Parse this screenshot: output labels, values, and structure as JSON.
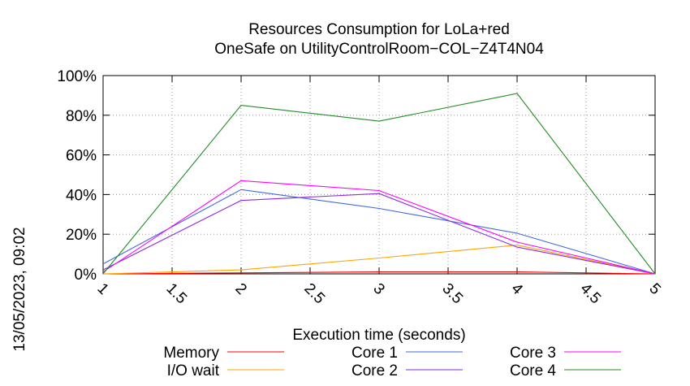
{
  "chart_data": {
    "type": "line",
    "title": "Resources Consumption for LoLa+red",
    "subtitle": "OneSafe on UtilityControlRoom−COL−Z4T4N04",
    "xlabel": "Execution time (seconds)",
    "ylabel": "",
    "side_label": "13/05/2023, 09:02",
    "xlim": [
      1,
      5
    ],
    "ylim": [
      0,
      100
    ],
    "x_ticks": [
      1,
      1.5,
      2,
      2.5,
      3,
      3.5,
      4,
      4.5,
      5
    ],
    "x_tick_labels": [
      "1",
      "1.5",
      "2",
      "2.5",
      "3",
      "3.5",
      "4",
      "4.5",
      "5"
    ],
    "y_ticks": [
      0,
      20,
      40,
      60,
      80,
      100
    ],
    "y_tick_labels": [
      "0%",
      "20%",
      "40%",
      "60%",
      "80%",
      "100%"
    ],
    "grid": true,
    "legend_position": "bottom",
    "x": [
      1,
      2,
      3,
      4,
      5
    ],
    "series": [
      {
        "name": "Memory",
        "color": "#ff0000",
        "values": [
          0,
          0.5,
          1,
          1,
          0
        ]
      },
      {
        "name": "I/O wait",
        "color": "#ffa500",
        "values": [
          0,
          2,
          8,
          14.5,
          0
        ]
      },
      {
        "name": "Core 1",
        "color": "#4169e1",
        "values": [
          5,
          42.5,
          33,
          20.5,
          0
        ]
      },
      {
        "name": "Core 2",
        "color": "#8a2be2",
        "values": [
          2,
          37,
          40.5,
          13.5,
          0
        ]
      },
      {
        "name": "Core 3",
        "color": "#ff00ff",
        "values": [
          1,
          47,
          42,
          16,
          0
        ]
      },
      {
        "name": "Core 4",
        "color": "#228b22",
        "values": [
          0,
          85,
          77,
          91,
          0
        ]
      }
    ]
  }
}
